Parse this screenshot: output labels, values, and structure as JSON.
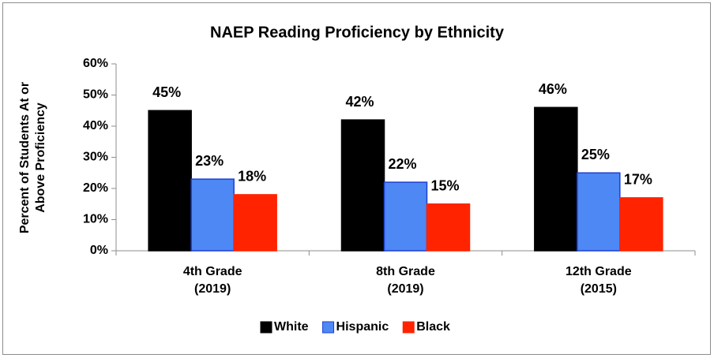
{
  "chart_data": {
    "type": "bar",
    "title": "NAEP Reading Proficiency by Ethnicity",
    "y_label": "Percent of Students At or Above Proficiency",
    "categories": [
      "4th Grade (2019)",
      "8th Grade (2019)",
      "12th Grade (2015)"
    ],
    "series": [
      {
        "name": "White",
        "color": "#000000",
        "values": [
          45,
          42,
          46
        ],
        "value_labels": [
          "45%",
          "42%",
          "46%"
        ]
      },
      {
        "name": "Hispanic",
        "color": "#4d88f5",
        "values": [
          23,
          22,
          25
        ],
        "value_labels": [
          "23%",
          "22%",
          "25%"
        ]
      },
      {
        "name": "Black",
        "color": "#ff2300",
        "values": [
          18,
          15,
          17
        ],
        "value_labels": [
          "18%",
          "15%",
          "17%"
        ]
      }
    ],
    "ylim": [
      0,
      60
    ],
    "yticks": [
      {
        "value": 0,
        "label": "0%"
      },
      {
        "value": 10,
        "label": "10%"
      },
      {
        "value": 20,
        "label": "20%"
      },
      {
        "value": 30,
        "label": "30%"
      },
      {
        "value": 40,
        "label": "40%"
      },
      {
        "value": 50,
        "label": "50%"
      },
      {
        "value": 60,
        "label": "60%"
      }
    ],
    "legend": "bottom"
  }
}
